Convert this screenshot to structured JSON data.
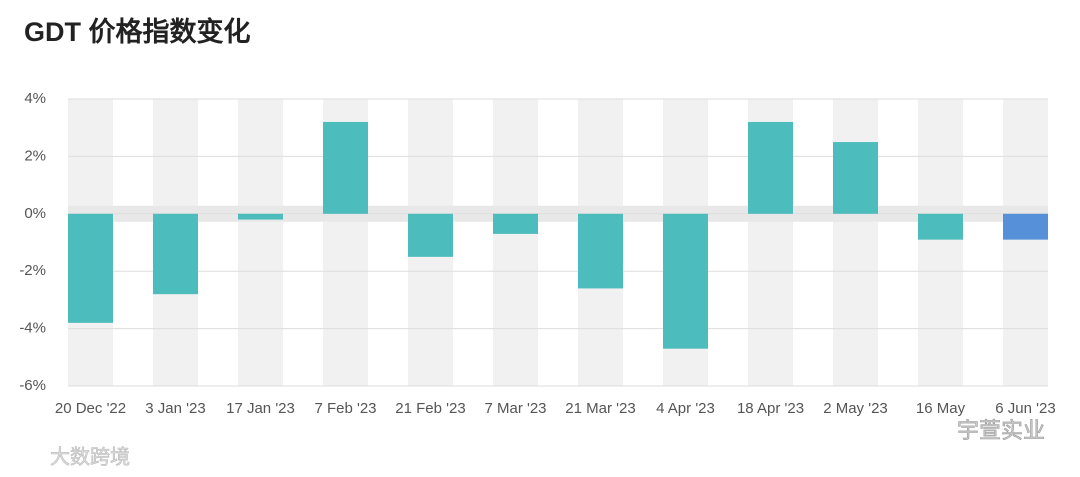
{
  "chart_data": {
    "type": "bar",
    "title": "GDT 价格指数变化",
    "categories": [
      "20 Dec '22",
      "3 Jan '23",
      "17 Jan '23",
      "7 Feb '23",
      "21 Feb '23",
      "7 Mar '23",
      "21 Mar '23",
      "4 Apr '23",
      "18 Apr '23",
      "2 May '23",
      "16 May",
      "6 Jun '23"
    ],
    "values": [
      -3.8,
      -2.8,
      -0.2,
      3.2,
      -1.5,
      -0.7,
      -2.6,
      -4.7,
      3.2,
      2.5,
      -0.9,
      -0.9
    ],
    "colors": [
      "#4dbcbd",
      "#4dbcbd",
      "#4dbcbd",
      "#4dbcbd",
      "#4dbcbd",
      "#4dbcbd",
      "#4dbcbd",
      "#4dbcbd",
      "#4dbcbd",
      "#4dbcbd",
      "#4dbcbd",
      "#5590d8"
    ],
    "ylim": [
      -6,
      4
    ],
    "yticks": [
      {
        "value": -6,
        "label": "-6%"
      },
      {
        "value": -4,
        "label": "-4%"
      },
      {
        "value": -2,
        "label": "-2%"
      },
      {
        "value": 0,
        "label": "0%"
      },
      {
        "value": 2,
        "label": "2%"
      },
      {
        "value": 4,
        "label": "4%"
      }
    ],
    "watermarks": [
      "大数跨境",
      "宇萱实业"
    ]
  }
}
